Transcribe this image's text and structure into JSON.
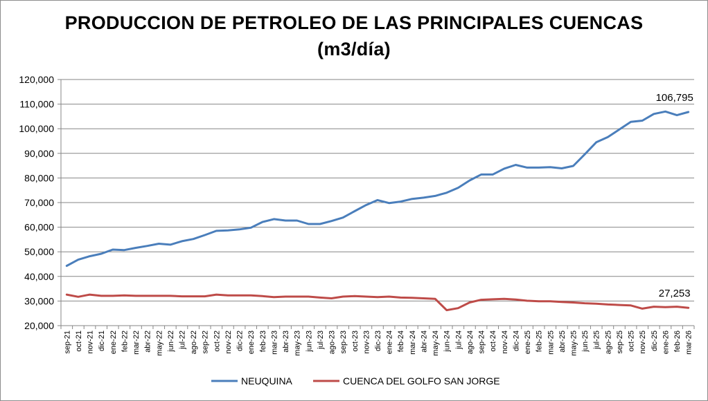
{
  "chart_data": {
    "type": "line",
    "title": "PRODUCCION DE PETROLEO DE LAS PRINCIPALES CUENCAS",
    "subtitle": "(m3/día)",
    "ylim": [
      20000,
      120000
    ],
    "y_ticks": [
      "20,000",
      "30,000",
      "40,000",
      "50,000",
      "60,000",
      "70,000",
      "80,000",
      "90,000",
      "100,000",
      "110,000",
      "120,000"
    ],
    "grid": true,
    "legend_position": "bottom",
    "categories": [
      "sep-21",
      "oct-21",
      "nov-21",
      "dic-21",
      "ene-22",
      "feb-22",
      "mar-22",
      "abr-22",
      "may-22",
      "jun-22",
      "jul-22",
      "ago-22",
      "sep-22",
      "oct-22",
      "nov-22",
      "dic-22",
      "ene-23",
      "feb-23",
      "mar-23",
      "abr-23",
      "may-23",
      "jun-23",
      "jul-23",
      "ago-23",
      "sep-23",
      "oct-23",
      "nov-23",
      "dic-23",
      "ene-24",
      "feb-24",
      "mar-24",
      "abr-24",
      "may-24",
      "jun-24",
      "jul-24",
      "ago-24",
      "sep-24",
      "oct-24",
      "nov-24",
      "dic-24",
      "ene-25",
      "feb-25",
      "mar-25",
      "abr-25",
      "may-25",
      "jun-25",
      "jul-25",
      "ago-25",
      "sep-25",
      "oct-25",
      "nov-25",
      "dic-25",
      "ene-26",
      "feb-26",
      "mar-26"
    ],
    "series": [
      {
        "name": "NEUQUINA",
        "color": "#4a7ebb",
        "end_label": "106,795",
        "values": [
          44300,
          46800,
          48200,
          49200,
          50900,
          50700,
          51600,
          52400,
          53300,
          52900,
          54300,
          55200,
          56800,
          58500,
          58700,
          59100,
          59800,
          62100,
          63300,
          62700,
          62700,
          61300,
          61300,
          62500,
          63900,
          66500,
          69000,
          71000,
          69800,
          70400,
          71500,
          72000,
          72700,
          74000,
          76000,
          79000,
          81400,
          81400,
          83800,
          85300,
          84200,
          84200,
          84400,
          83900,
          84900,
          89600,
          94500,
          96600,
          99700,
          102800,
          103300,
          106000,
          107000,
          105500,
          106795
        ]
      },
      {
        "name": "CUENCA DEL GOLFO SAN JORGE",
        "color": "#be4b48",
        "end_label": "27,253",
        "values": [
          32600,
          31700,
          32600,
          32100,
          32100,
          32300,
          32100,
          32100,
          32100,
          32100,
          31900,
          31900,
          31900,
          32600,
          32300,
          32300,
          32300,
          32000,
          31600,
          31800,
          31800,
          31800,
          31400,
          31100,
          31800,
          32000,
          31800,
          31600,
          31800,
          31400,
          31300,
          31100,
          30900,
          26300,
          27100,
          29400,
          30500,
          30700,
          30900,
          30600,
          30100,
          29900,
          29900,
          29600,
          29400,
          29100,
          28900,
          28600,
          28400,
          28200,
          26900,
          27700,
          27500,
          27700,
          27253
        ]
      }
    ]
  }
}
